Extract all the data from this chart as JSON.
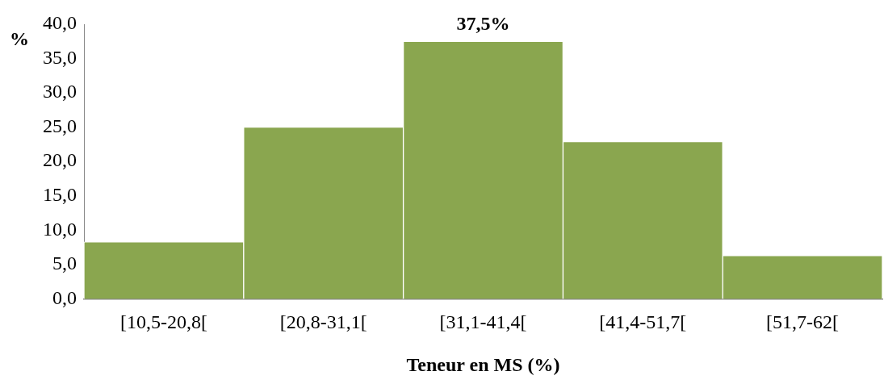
{
  "chart_data": {
    "type": "bar",
    "xlabel": "Teneur en MS (%)",
    "ylabel": "%",
    "categories": [
      "[10,5-20,8[",
      "[20,8-31,1[",
      "[31,1-41,4[",
      "[41,4-51,7[",
      "[51,7-62["
    ],
    "values": [
      8.3,
      25.0,
      37.5,
      22.9,
      6.3
    ],
    "value_labels": [
      null,
      null,
      "37,5%",
      null,
      null
    ],
    "color": "#8aa64f",
    "ylim": [
      0,
      40
    ],
    "yticks": [
      {
        "value": 0,
        "label": "0,0"
      },
      {
        "value": 5,
        "label": "5,0"
      },
      {
        "value": 10,
        "label": "10,0"
      },
      {
        "value": 15,
        "label": "15,0"
      },
      {
        "value": 20,
        "label": "20,0"
      },
      {
        "value": 25,
        "label": "25,0"
      },
      {
        "value": 30,
        "label": "30,0"
      },
      {
        "value": 35,
        "label": "35,0"
      },
      {
        "value": 40,
        "label": "40,0"
      }
    ],
    "grid": false,
    "legend": false
  }
}
